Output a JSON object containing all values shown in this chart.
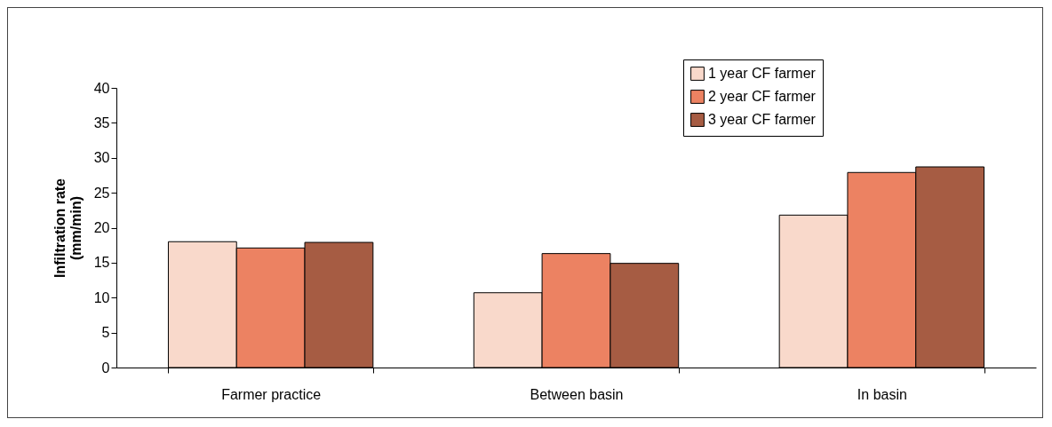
{
  "chart_data": {
    "type": "bar",
    "ylabel": "Infiltration rate\n(mm/min)",
    "categories": [
      "Farmer practice",
      "Between basin",
      "In basin"
    ],
    "series": [
      {
        "name": "1 year CF farmer",
        "color": "#f9d9cb",
        "values": [
          18.0,
          10.7,
          21.8
        ]
      },
      {
        "name": "2 year CF farmer",
        "color": "#ec8262",
        "values": [
          17.1,
          16.3,
          27.9
        ]
      },
      {
        "name": "3 year CF farmer",
        "color": "#a65c43",
        "values": [
          17.9,
          14.9,
          28.7
        ]
      }
    ],
    "ylim": [
      0,
      40
    ],
    "yticks": [
      0,
      5,
      10,
      15,
      20,
      25,
      30,
      35,
      40
    ],
    "grid": false,
    "legend": "top right"
  }
}
